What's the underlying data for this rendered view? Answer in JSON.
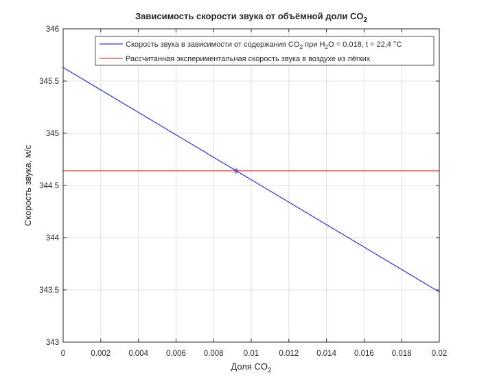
{
  "chart_data": {
    "type": "line",
    "title": "Зависимость скорости звука от объёмной доли CO",
    "title_sub": "2",
    "xlabel": "Доля CO",
    "xlabel_sub": "2",
    "ylabel": "Скорость звука, м/с",
    "xlim": [
      0,
      0.02
    ],
    "ylim": [
      343,
      346
    ],
    "x_ticks": [
      0,
      0.002,
      0.004,
      0.006,
      0.008,
      0.01,
      0.012,
      0.014,
      0.016,
      0.018,
      0.02
    ],
    "x_tick_labels": [
      "0",
      "0.002",
      "0.004",
      "0.006",
      "0.008",
      "0.01",
      "0.012",
      "0.014",
      "0.016",
      "0.018",
      "0.02"
    ],
    "y_ticks": [
      343,
      343.5,
      344,
      344.5,
      345,
      345.5,
      346
    ],
    "y_tick_labels": [
      "343",
      "343.5",
      "344",
      "344.5",
      "345",
      "345.5",
      "346"
    ],
    "grid": true,
    "legend_position": "top-right",
    "series": [
      {
        "name": "Скорость звука в зависимости от содержания CO2 при H2O = 0.018, t = 22,4 °C",
        "color": "#0000ff",
        "x": [
          0,
          0.02
        ],
        "y": [
          345.63,
          343.48
        ]
      },
      {
        "name": "Рассчитанная экспериментальная скорость звука в воздухе из лёгких",
        "color": "#ff0000",
        "x": [
          0,
          0.02
        ],
        "y": [
          344.64,
          344.64
        ]
      }
    ],
    "marker": {
      "x": 0.0092,
      "y": 344.64,
      "symbol": "*"
    }
  },
  "legend": {
    "line1_pre": "Скорость звука в зависимости от содержания CO",
    "line1_sub1": "2",
    "line1_mid": " при H",
    "line1_sub2": "2",
    "line1_post": "O = 0.018, t = 22,4 °C",
    "line2": "Рассчитанная экспериментальная скорость звука в воздухе из лёгких"
  }
}
